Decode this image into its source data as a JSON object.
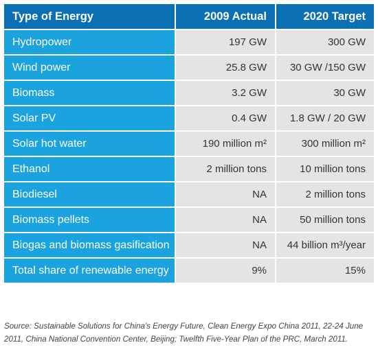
{
  "table": {
    "headers": [
      "Type of Energy",
      "2009 Actual",
      "2020 Target"
    ],
    "rows": [
      [
        "Hydropower",
        "197 GW",
        "300 GW"
      ],
      [
        "Wind power",
        "25.8 GW",
        "30 GW /150 GW"
      ],
      [
        "Biomass",
        "3.2 GW",
        "30 GW"
      ],
      [
        "Solar PV",
        "0.4 GW",
        "1.8 GW / 20 GW"
      ],
      [
        "Solar hot water",
        "190 million m²",
        "300 million m²"
      ],
      [
        "Ethanol",
        "2 million tons",
        "10 million tons"
      ],
      [
        "Biodiesel",
        "NA",
        "2 million tons"
      ],
      [
        "Biomass pellets",
        "NA",
        "50 million tons"
      ],
      [
        "Biogas and biomass gasification",
        "NA",
        "44 billion m³/year"
      ],
      [
        "Total share of renewable energy",
        "9%",
        "15%"
      ]
    ]
  },
  "source": "Source: Sustainable Solutions for China's Energy Future, Clean Energy Expo China 2011, 22-24 June 2011, China National Convention Center, Beijing; Twelfth Five-Year Plan of the PRC, March 2011.",
  "colors": {
    "header_bg": "#0a6fb3",
    "label_bg": "#1aa3de",
    "value_bg": "#e4e4e4"
  }
}
